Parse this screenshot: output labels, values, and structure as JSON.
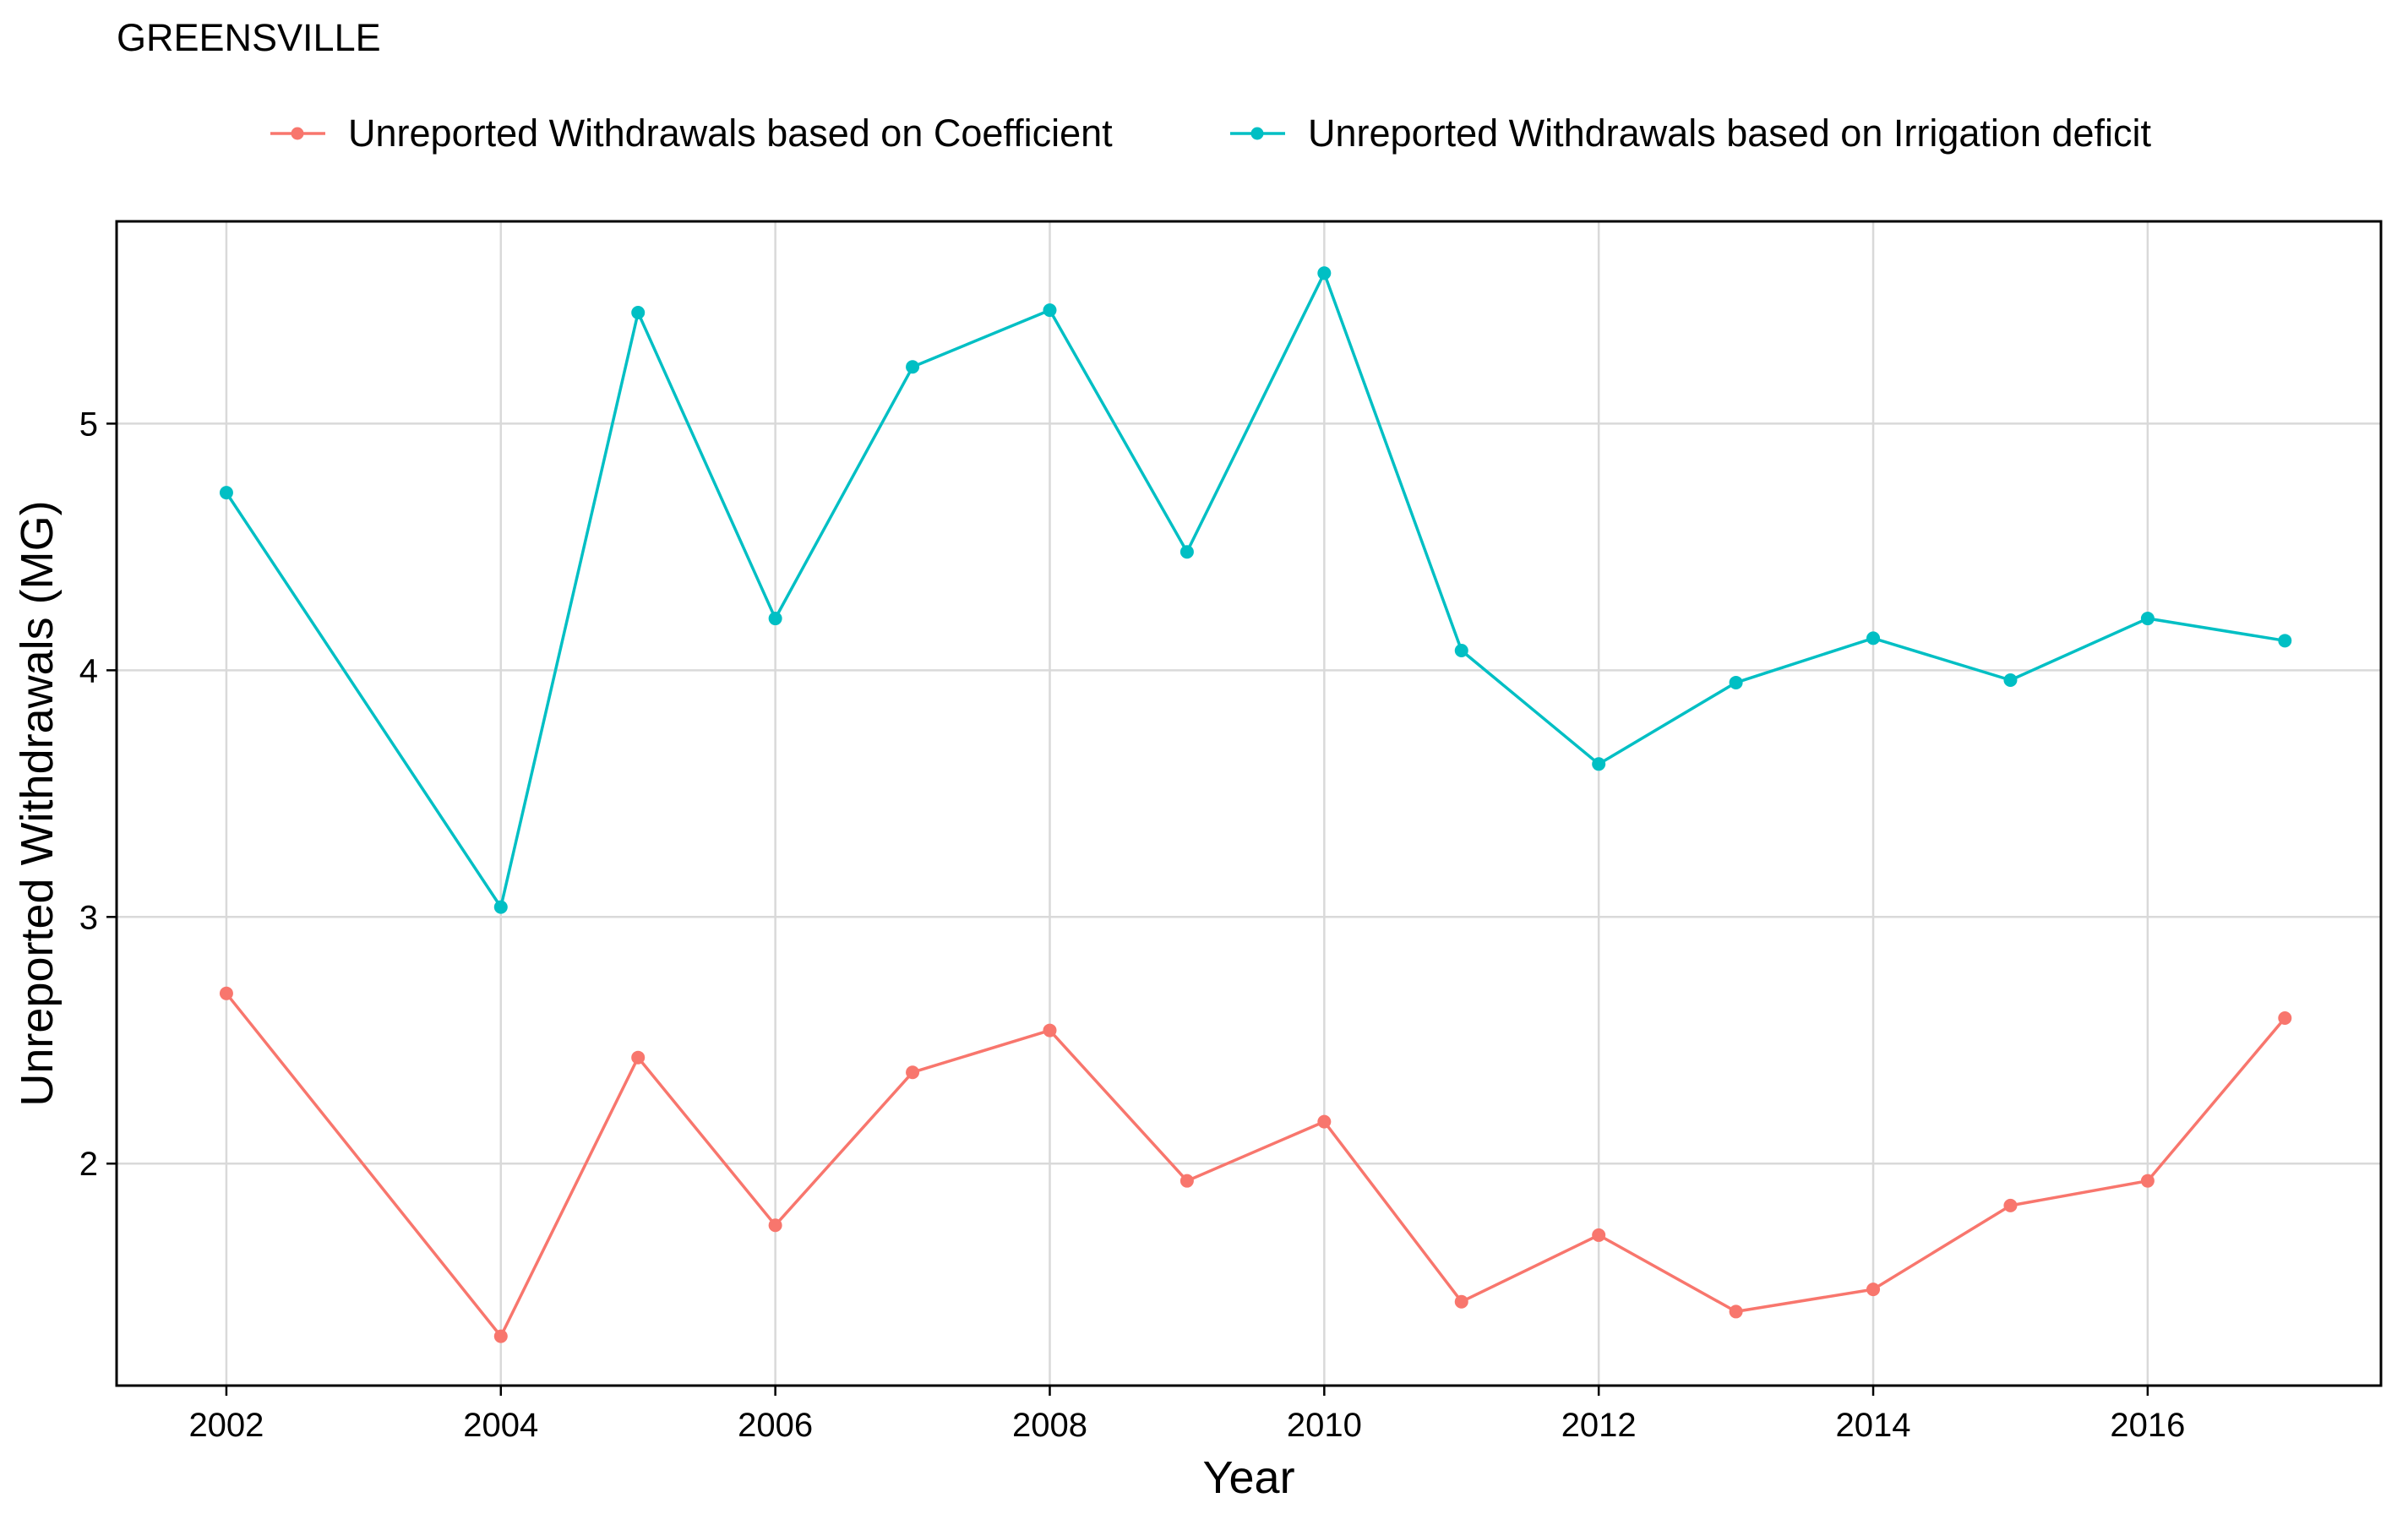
{
  "chart_data": {
    "type": "line",
    "title": "GREENSVILLE",
    "xlabel": "Year",
    "ylabel": "Unreported Withdrawals (MG)",
    "x": [
      2002,
      2004,
      2005,
      2006,
      2007,
      2008,
      2009,
      2010,
      2011,
      2012,
      2013,
      2014,
      2015,
      2016,
      2017
    ],
    "xticks": [
      2002,
      2004,
      2006,
      2008,
      2010,
      2012,
      2014,
      2016
    ],
    "xtick_labels": [
      "2002",
      "2004",
      "2006",
      "2008",
      "2010",
      "2012",
      "2014",
      "2016"
    ],
    "yticks": [
      2,
      3,
      4,
      5
    ],
    "ytick_labels": [
      "2",
      "3",
      "4",
      "5"
    ],
    "xlim": [
      2001.2,
      2017.7
    ],
    "ylim": [
      1.1,
      5.82
    ],
    "grid": true,
    "legend_position": "top",
    "series": [
      {
        "name": "Unreported Withdrawals based on Coefficient",
        "color": "#F8766D",
        "values": [
          2.69,
          1.3,
          2.43,
          1.75,
          2.37,
          2.54,
          1.93,
          2.17,
          1.44,
          1.71,
          1.4,
          1.49,
          1.83,
          1.93,
          2.59
        ]
      },
      {
        "name": "Unreported Withdrawals based on Irrigation deficit",
        "color": "#00BFC4",
        "values": [
          4.72,
          3.04,
          5.45,
          4.21,
          5.23,
          5.46,
          4.48,
          5.61,
          4.08,
          3.62,
          3.95,
          4.13,
          3.96,
          4.21,
          4.12
        ]
      }
    ]
  }
}
